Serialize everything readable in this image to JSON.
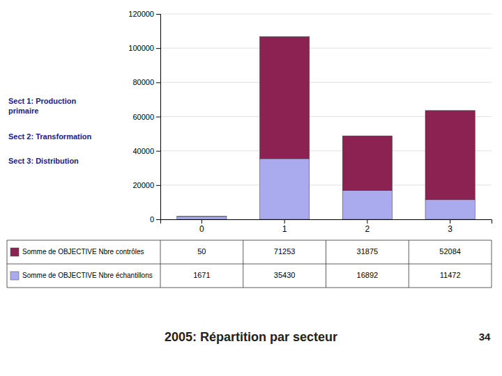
{
  "chart_data": {
    "type": "bar",
    "stacked": true,
    "title": "2005: Répartition par secteur",
    "categories": [
      "0",
      "1",
      "2",
      "3"
    ],
    "series": [
      {
        "name": "Somme de OBJECTIVE Nbre échantillons",
        "color": "#AAAAEE",
        "values": [
          1671,
          35430,
          16892,
          11472
        ]
      },
      {
        "name": "Somme de OBJECTIVE Nbre contrôles",
        "color": "#8B2252",
        "values": [
          50,
          71253,
          31875,
          52084
        ]
      }
    ],
    "ylim": [
      0,
      120000
    ],
    "yticks": [
      0,
      20000,
      40000,
      60000,
      80000,
      100000,
      120000
    ],
    "grid": true,
    "annotations": [
      "Sect 1: Production\nprimaire",
      "Sect 2: Transformation",
      "Sect 3: Distribution",
      "34"
    ]
  }
}
